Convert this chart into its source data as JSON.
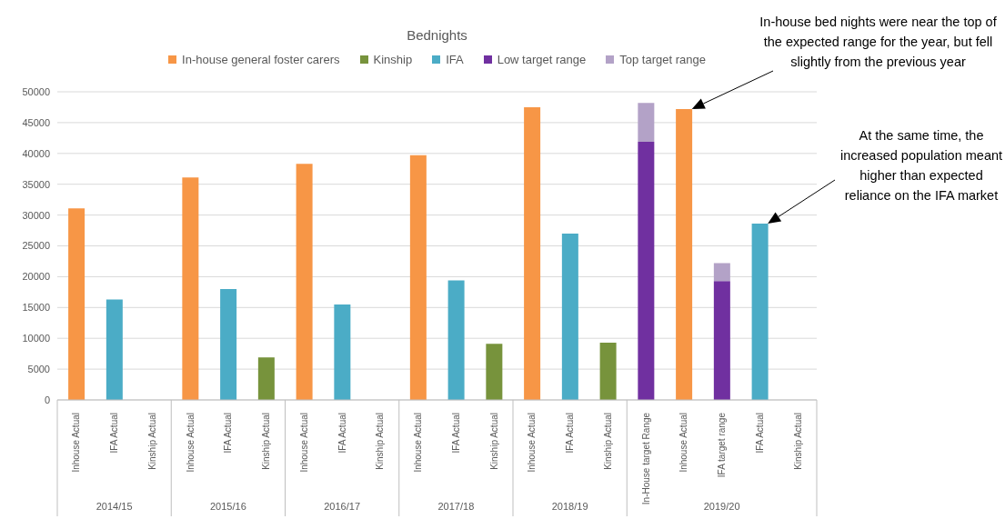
{
  "chart_data": {
    "type": "bar",
    "title": "Bednights",
    "categories": [
      "Inhouse Actual",
      "IFA Actual",
      "Kinship Actual",
      "Inhouse Actual",
      "IFA Actual",
      "Kinship Actual",
      "Inhouse Actual",
      "IFA Actual",
      "Kinship Actual",
      "Inhouse Actual",
      "IFA Actual",
      "Kinship Actual",
      "Inhouse Actual",
      "IFA Actual",
      "Kinship Actual",
      "In-House target Range",
      "Inhouse Actual",
      "IFA target range",
      "IFA Actual",
      "Kinship Actual"
    ],
    "series": [
      {
        "name": "In-house general foster carers",
        "color": "#f79646",
        "values": [
          31100,
          null,
          null,
          36100,
          null,
          null,
          38300,
          null,
          null,
          39700,
          null,
          null,
          47500,
          null,
          null,
          null,
          47200,
          null,
          null,
          null
        ]
      },
      {
        "name": "Kinship",
        "color": "#77933c",
        "values": [
          null,
          null,
          null,
          null,
          null,
          6900,
          null,
          null,
          null,
          null,
          null,
          9100,
          null,
          null,
          9300,
          null,
          null,
          null,
          null,
          null
        ]
      },
      {
        "name": "IFA",
        "color": "#4bacc6",
        "values": [
          null,
          16300,
          null,
          null,
          18000,
          null,
          null,
          15500,
          null,
          null,
          19400,
          null,
          null,
          27000,
          null,
          null,
          null,
          null,
          28600,
          null
        ]
      },
      {
        "name": "Low target range",
        "color": "#7030a0",
        "values": [
          null,
          null,
          null,
          null,
          null,
          null,
          null,
          null,
          null,
          null,
          null,
          null,
          null,
          null,
          null,
          41900,
          null,
          19300,
          null,
          null
        ]
      },
      {
        "name": "Top target range",
        "color": "#b3a2c7",
        "values": [
          null,
          null,
          null,
          null,
          null,
          null,
          null,
          null,
          null,
          null,
          null,
          null,
          null,
          null,
          null,
          6300,
          null,
          2900,
          null,
          null
        ]
      }
    ],
    "stacked": true,
    "ylim": [
      0,
      50000
    ],
    "yticks": [
      0,
      5000,
      10000,
      15000,
      20000,
      25000,
      30000,
      35000,
      40000,
      45000,
      50000
    ],
    "grid": "y",
    "legend": "top",
    "annotations": [
      "2014/15",
      "2015/16",
      "2016/17",
      "2017/18",
      "2018/19",
      "2019/20",
      "In-house bed nights were near the top of the expected range for the year, but fell slightly from the previous year",
      "At the same time, the increased population meant higher than expected reliance on the IFA market"
    ]
  }
}
